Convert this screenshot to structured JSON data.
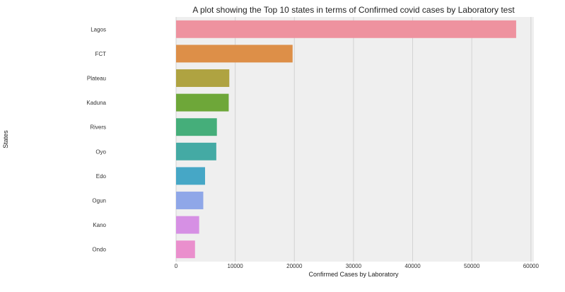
{
  "chart_data": {
    "type": "bar",
    "orientation": "horizontal",
    "title": "A plot showing the Top 10 states in terms of Confirmed covid cases by Laboratory test",
    "xlabel": "Confirmed Cases by Laboratory",
    "ylabel": "States",
    "categories": [
      "Lagos",
      "FCT",
      "Plateau",
      "Kaduna",
      "Rivers",
      "Oyo",
      "Edo",
      "Ogun",
      "Kano",
      "Ondo"
    ],
    "values": [
      57500,
      19700,
      9000,
      8900,
      6900,
      6800,
      4900,
      4600,
      3900,
      3200
    ],
    "colors": [
      "#ee929f",
      "#dd8f48",
      "#afa341",
      "#6ea739",
      "#45ae7a",
      "#44aaa4",
      "#46a7c6",
      "#8fa7e8",
      "#d690e4",
      "#ea8fcd"
    ],
    "xlim": [
      0,
      60500
    ],
    "xticks": [
      0,
      10000,
      20000,
      30000,
      40000,
      50000,
      60000
    ],
    "xtick_labels": [
      "0",
      "10000",
      "20000",
      "30000",
      "40000",
      "50000",
      "60000"
    ],
    "grid": "vertical",
    "background": "#efefef"
  }
}
